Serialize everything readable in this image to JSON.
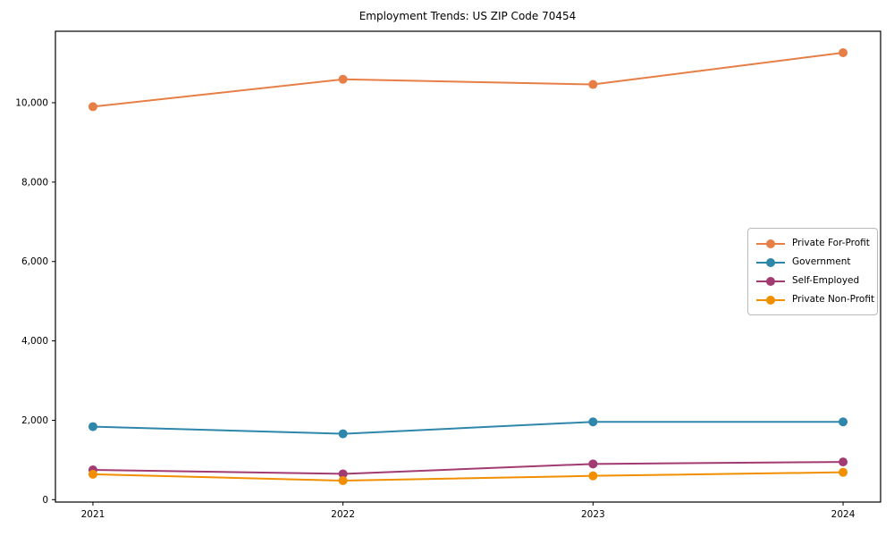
{
  "page": {
    "title": "Employment Trends: US ZIP Code 70454"
  },
  "chart_data": {
    "type": "line",
    "title": "Employment Trends: US ZIP Code 70454",
    "categories": [
      "2021",
      "2022",
      "2023",
      "2024"
    ],
    "x": [
      2021,
      2022,
      2023,
      2024
    ],
    "series": [
      {
        "name": "Private For-Profit",
        "color": "#E67E45",
        "values": [
          9900,
          10590,
          10460,
          11260
        ]
      },
      {
        "name": "Government",
        "color": "#2E86AB",
        "values": [
          1840,
          1660,
          1960,
          1960
        ]
      },
      {
        "name": "Self-Employed",
        "color": "#A23B72",
        "values": [
          750,
          650,
          900,
          950
        ]
      },
      {
        "name": "Private Non-Profit",
        "color": "#F18F01",
        "values": [
          640,
          480,
          600,
          690
        ]
      }
    ],
    "xlabel": "",
    "ylabel": "",
    "xlim": [
      2020.85,
      2024.15
    ],
    "ylim": [
      -60,
      11800
    ],
    "yticks": [
      0,
      2000,
      4000,
      6000,
      8000,
      10000
    ],
    "ytick_labels": [
      "0",
      "2,000",
      "4,000",
      "6,000",
      "8,000",
      "10,000"
    ],
    "grid": false,
    "legend_position": "center-right",
    "marker": "circle",
    "marker_radius": 5,
    "line_width": 2,
    "background_color": "#ffffff",
    "frame_color": "#000000",
    "text_color": "#000000"
  }
}
